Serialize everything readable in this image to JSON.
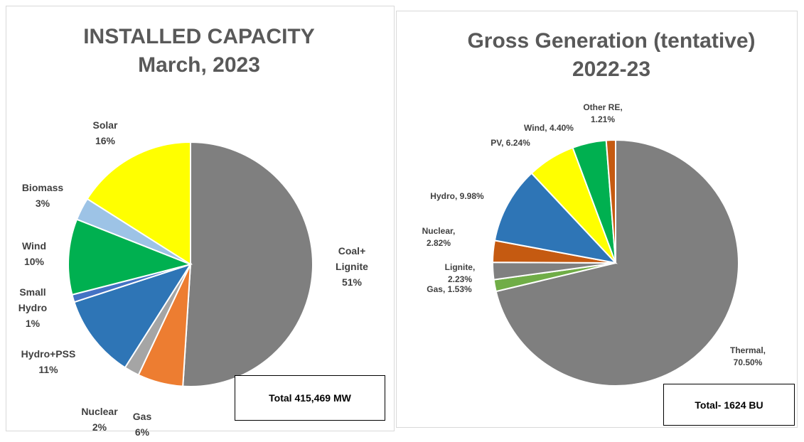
{
  "chart_data": [
    {
      "type": "pie",
      "title": "INSTALLED CAPACITY",
      "subtitle": "March, 2023",
      "categories": [
        "Coal+ Lignite",
        "Gas",
        "Nuclear",
        "Hydro+PSS",
        "Small Hydro",
        "Wind",
        "Biomass",
        "Solar"
      ],
      "values": [
        51,
        6,
        2,
        11,
        1,
        10,
        3,
        16
      ],
      "value_labels": [
        "51%",
        "6%",
        "2%",
        "11%",
        "1%",
        "10%",
        "3%",
        "16%"
      ],
      "colors": [
        "#7f7f7f",
        "#ed7d31",
        "#a5a5a5",
        "#2e75b6",
        "#4472c4",
        "#00b050",
        "#9dc3e6",
        "#ffff00"
      ],
      "annotation": "Total 415,469 MW"
    },
    {
      "type": "pie",
      "title": "Gross Generation (tentative)",
      "subtitle": "2022-23",
      "categories": [
        "Thermal,",
        "Gas,",
        "Lignite,",
        "Nuclear,",
        "Hydro,",
        "PV,",
        "Wind,",
        "Other RE,"
      ],
      "values": [
        70.5,
        1.53,
        2.23,
        2.82,
        9.98,
        6.24,
        4.4,
        1.21
      ],
      "value_labels": [
        "70.50%",
        "1.53%",
        "2.23%",
        "2.82%",
        "9.98%",
        "6.24%",
        "4.40%",
        "1.21%"
      ],
      "colors": [
        "#7f7f7f",
        "#70ad47",
        "#808080",
        "#c55a11",
        "#2e75b6",
        "#ffff00",
        "#00b050",
        "#c55a11"
      ],
      "annotation": "Total- 1624 BU"
    }
  ]
}
